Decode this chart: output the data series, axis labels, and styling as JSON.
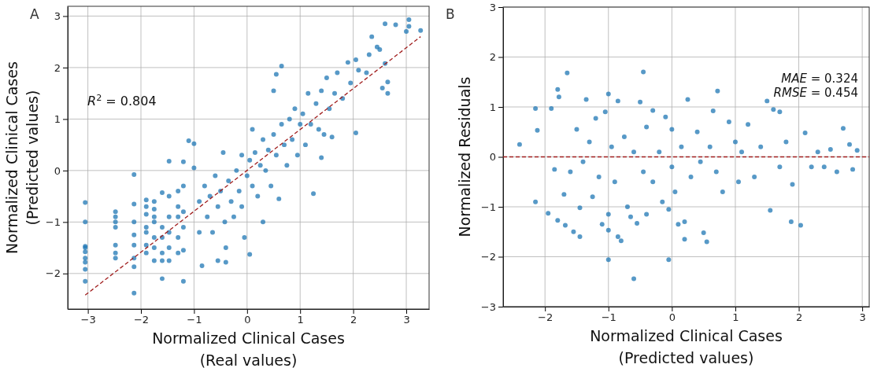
{
  "chart_data": [
    {
      "type": "scatter",
      "title": "A",
      "xlabel": "Normalized Clinical Cases\n(Real values)",
      "ylabel": "Normalized Clinical Cases\n(Predicted values)",
      "xlim": [
        -3.38,
        3.43
      ],
      "ylim": [
        -2.69,
        3.19
      ],
      "xticks": [
        -3,
        -2,
        -1,
        0,
        1,
        2,
        3
      ],
      "yticks": [
        -2,
        -1,
        0,
        1,
        2,
        3
      ],
      "grid": true,
      "annotations": [
        {
          "text": "R$^{2}$ = 0.804"
        }
      ],
      "series": [
        {
          "color": "#1f77b4",
          "marker": "circle",
          "x": [
            -3.05,
            -3.05,
            -3.05,
            -3.05,
            -3.05,
            -3.05,
            -3.05,
            -3.05,
            -3.05,
            -2.48,
            -2.48,
            -2.48,
            -2.48,
            -2.48,
            -2.48,
            -2.48,
            -2.13,
            -2.13,
            -2.13,
            -2.13,
            -2.13,
            -2.13,
            -2.13,
            -2.13,
            -1.9,
            -1.9,
            -1.9,
            -1.9,
            -1.9,
            -1.9,
            -1.9,
            -1.75,
            -1.75,
            -1.75,
            -1.75,
            -1.75,
            -1.75,
            -1.75,
            -1.6,
            -1.6,
            -1.6,
            -1.6,
            -1.6,
            -1.6,
            -1.47,
            -1.47,
            -1.47,
            -1.47,
            -1.47,
            -1.47,
            -1.3,
            -1.3,
            -1.3,
            -1.3,
            -1.3,
            -1.2,
            -1.2,
            -1.2,
            -1.2,
            -1.2,
            -1.2,
            -1.1,
            -1.0,
            -1.0,
            -0.9,
            -0.9,
            -0.85,
            -0.8,
            -0.75,
            -0.7,
            -0.65,
            -0.6,
            -0.55,
            -0.55,
            -0.5,
            -0.45,
            -0.42,
            -0.4,
            -0.4,
            -0.35,
            -0.3,
            -0.25,
            -0.2,
            -0.15,
            -0.1,
            -0.1,
            -0.05,
            0,
            0.05,
            0.05,
            0.1,
            0.1,
            0.15,
            0.2,
            0.25,
            0.3,
            0.3,
            0.35,
            0.4,
            0.45,
            0.5,
            0.5,
            0.55,
            0.55,
            0.6,
            0.65,
            0.65,
            0.7,
            0.75,
            0.8,
            0.85,
            0.9,
            0.95,
            1.0,
            1.05,
            1.1,
            1.15,
            1.2,
            1.25,
            1.3,
            1.35,
            1.4,
            1.4,
            1.45,
            1.5,
            1.55,
            1.6,
            1.65,
            1.7,
            1.8,
            1.9,
            1.95,
            2.05,
            2.05,
            2.1,
            2.25,
            2.3,
            2.35,
            2.45,
            2.5,
            2.55,
            2.6,
            2.65,
            2.65,
            2.6,
            2.8,
            3.0,
            3.05,
            3.05,
            3.27
          ],
          "values": [
            -0.62,
            -1.0,
            -1.47,
            -1.5,
            -1.58,
            -1.7,
            -1.78,
            -1.92,
            -2.15,
            -0.8,
            -0.9,
            -1.0,
            -1.1,
            -1.45,
            -1.6,
            -1.7,
            -0.08,
            -0.65,
            -1.0,
            -1.25,
            -1.45,
            -1.7,
            -1.87,
            -2.38,
            -0.57,
            -0.7,
            -0.85,
            -1.1,
            -1.2,
            -1.45,
            -1.6,
            -0.6,
            -0.75,
            -0.9,
            -1.0,
            -1.3,
            -1.5,
            -1.75,
            -0.43,
            -1.1,
            -1.3,
            -1.6,
            -1.75,
            -2.1,
            0.18,
            -0.5,
            -0.9,
            -1.2,
            -1.5,
            -1.75,
            -0.4,
            -0.7,
            -0.9,
            -1.3,
            -1.6,
            0.17,
            -0.3,
            -0.8,
            -1.1,
            -1.55,
            -2.15,
            0.58,
            0.52,
            0.05,
            -0.6,
            -1.2,
            -1.85,
            -0.3,
            -0.9,
            -0.5,
            -1.2,
            -0.1,
            -0.7,
            -1.75,
            -0.4,
            0.35,
            -1.0,
            -1.5,
            -1.78,
            -0.2,
            -0.6,
            -0.9,
            0.0,
            -0.4,
            0.3,
            -0.7,
            -1.3,
            -0.1,
            0.2,
            -1.63,
            -0.3,
            0.8,
            0.35,
            -0.5,
            0.1,
            0.6,
            -1.0,
            0.0,
            0.4,
            -0.3,
            0.7,
            1.55,
            0.3,
            1.87,
            -0.55,
            2.03,
            0.9,
            0.5,
            0.1,
            1.0,
            0.6,
            1.2,
            0.3,
            0.9,
            1.1,
            0.5,
            1.5,
            0.9,
            -0.45,
            1.3,
            0.8,
            1.55,
            0.25,
            0.7,
            1.8,
            1.2,
            0.65,
            1.5,
            1.9,
            1.4,
            2.1,
            1.7,
            2.15,
            0.73,
            1.95,
            1.9,
            2.25,
            2.6,
            2.4,
            2.35,
            1.6,
            2.85,
            1.5,
            1.72,
            2.08,
            2.83,
            2.7,
            2.93,
            2.8,
            2.72
          ]
        },
        {
          "type": "line",
          "color": "#a01c1c",
          "line_style": "dashed",
          "marker": "none",
          "x": [
            -3.05,
            3.27
          ],
          "values": [
            -2.42,
            2.6
          ]
        }
      ]
    },
    {
      "type": "scatter",
      "title": "B",
      "xlabel": "Normalized Clinical Cases\n(Predicted values)",
      "ylabel": "Normalized Residuals",
      "xlim": [
        -2.66,
        3.11
      ],
      "ylim": [
        -3,
        3
      ],
      "xticks": [
        -2,
        -1,
        0,
        1,
        2,
        3
      ],
      "yticks": [
        -3,
        -2,
        -1,
        0,
        1,
        2,
        3
      ],
      "grid": true,
      "annotations": [
        {
          "text": "MAE = 0.324"
        },
        {
          "text": "RMSE = 0.454"
        }
      ],
      "ref_lines": [
        {
          "axis": "y",
          "value": 0,
          "color": "#a01c1c",
          "line_style": "dashed"
        }
      ],
      "series": [
        {
          "color": "#1f77b4",
          "marker": "circle",
          "x": [
            -2.4,
            -2.15,
            -2.12,
            -2.15,
            -1.95,
            -1.9,
            -1.85,
            -1.8,
            -1.78,
            -1.8,
            -1.7,
            -1.68,
            -1.65,
            -1.6,
            -1.55,
            -1.5,
            -1.45,
            -1.45,
            -1.4,
            -1.35,
            -1.3,
            -1.25,
            -1.2,
            -1.15,
            -1.1,
            -1.05,
            -1.0,
            -1.0,
            -1.0,
            -1.0,
            -0.95,
            -0.9,
            -0.85,
            -0.85,
            -0.8,
            -0.75,
            -0.7,
            -0.65,
            -0.6,
            -0.6,
            -0.55,
            -0.5,
            -0.45,
            -0.45,
            -0.4,
            -0.4,
            -0.3,
            -0.3,
            -0.2,
            -0.15,
            -0.1,
            -0.05,
            -0.05,
            0,
            0,
            0.05,
            0.1,
            0.15,
            0.2,
            0.2,
            0.25,
            0.3,
            0.4,
            0.45,
            0.5,
            0.55,
            0.6,
            0.65,
            0.7,
            0.72,
            0.8,
            0.9,
            1.0,
            1.05,
            1.1,
            1.2,
            1.3,
            1.4,
            1.5,
            1.55,
            1.6,
            1.7,
            1.7,
            1.8,
            1.88,
            1.9,
            2.03,
            2.1,
            2.2,
            2.3,
            2.4,
            2.5,
            2.6,
            2.7,
            2.8,
            2.85,
            2.92
          ],
          "values": [
            0.25,
            0.97,
            0.53,
            -0.9,
            -1.13,
            0.97,
            -0.25,
            1.35,
            1.2,
            -1.27,
            -0.75,
            -1.37,
            1.68,
            -0.3,
            -1.5,
            0.55,
            -1.6,
            -1.02,
            -0.1,
            1.15,
            0.3,
            -0.8,
            0.77,
            -0.4,
            -1.35,
            0.9,
            1.26,
            -2.06,
            -1.47,
            -1.15,
            0.2,
            -0.5,
            1.12,
            -1.6,
            -1.68,
            0.4,
            -1.0,
            -1.2,
            -2.44,
            0.1,
            -1.33,
            1.1,
            1.7,
            -0.3,
            -1.15,
            0.6,
            0.93,
            -0.5,
            0.1,
            -0.9,
            0.8,
            -2.06,
            -1.05,
            0.55,
            -0.2,
            -0.7,
            -1.35,
            0.2,
            -1.3,
            -1.65,
            1.15,
            -0.4,
            0.5,
            -0.1,
            -1.52,
            -1.7,
            0.2,
            0.92,
            -0.3,
            1.32,
            -0.7,
            0.7,
            0.3,
            -0.5,
            0.1,
            0.65,
            -0.4,
            0.2,
            1.12,
            -1.07,
            0.95,
            0.9,
            -0.2,
            0.3,
            -1.3,
            -0.55,
            -1.37,
            0.48,
            -0.2,
            0.1,
            -0.2,
            0.15,
            -0.3,
            0.57,
            0.25,
            -0.25,
            0.13
          ]
        }
      ]
    }
  ]
}
